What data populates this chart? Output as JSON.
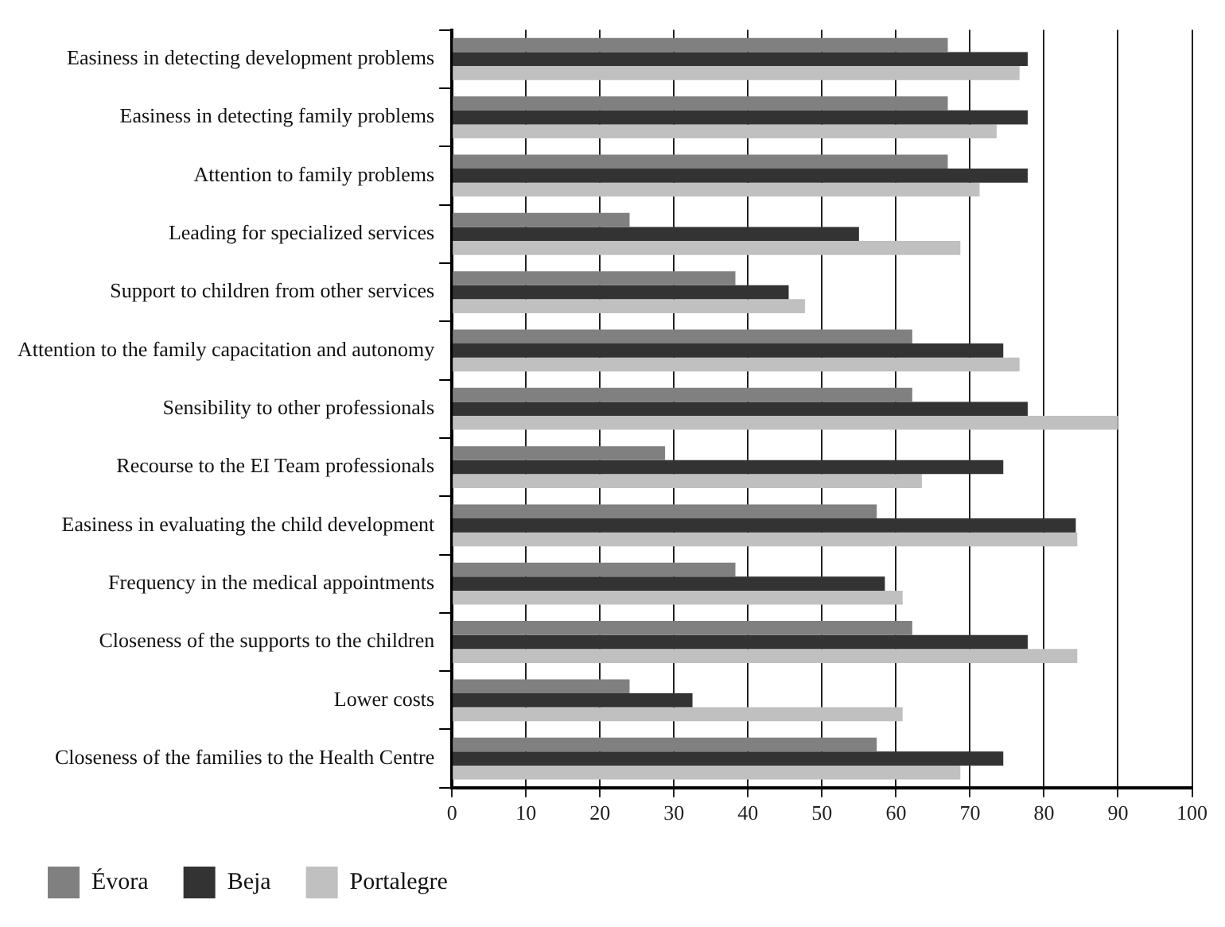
{
  "chart_data": {
    "type": "bar",
    "orientation": "horizontal",
    "categories": [
      "Easiness in detecting development problems",
      "Easiness in detecting family problems",
      "Attention to family problems",
      "Leading for specialized services",
      "Support to children from other services",
      "Attention to the family capacitation and autonomy",
      "Sensibility to other professionals",
      "Recourse to the EI Team professionals",
      "Easiness in evaluating the child development",
      "Frequency in the medical appointments",
      "Closeness of the supports to the children",
      "Lower costs",
      "Closeness of the families to the Health Centre"
    ],
    "series": [
      {
        "name": "Évora",
        "color": "#808080",
        "values": [
          67,
          67,
          67,
          24,
          38.3,
          62.2,
          62.2,
          28.8,
          57.4,
          38.3,
          62.2,
          24,
          57.4
        ]
      },
      {
        "name": "Beja",
        "color": "#333333",
        "values": [
          77.8,
          77.8,
          77.8,
          55,
          45.5,
          74.5,
          77.8,
          74.5,
          84.3,
          58.5,
          77.8,
          32.5,
          74.5
        ]
      },
      {
        "name": "Portalegre",
        "color": "#c0c0c0",
        "values": [
          76.7,
          73.6,
          71.3,
          68.7,
          47.7,
          76.7,
          90,
          63.5,
          84.5,
          60.9,
          84.5,
          60.9,
          68.7
        ]
      }
    ],
    "xlim": [
      0,
      100
    ],
    "xticks": [
      0,
      10,
      20,
      30,
      40,
      50,
      60,
      70,
      80,
      90,
      100
    ],
    "grid": "x",
    "legend": "bottom"
  }
}
